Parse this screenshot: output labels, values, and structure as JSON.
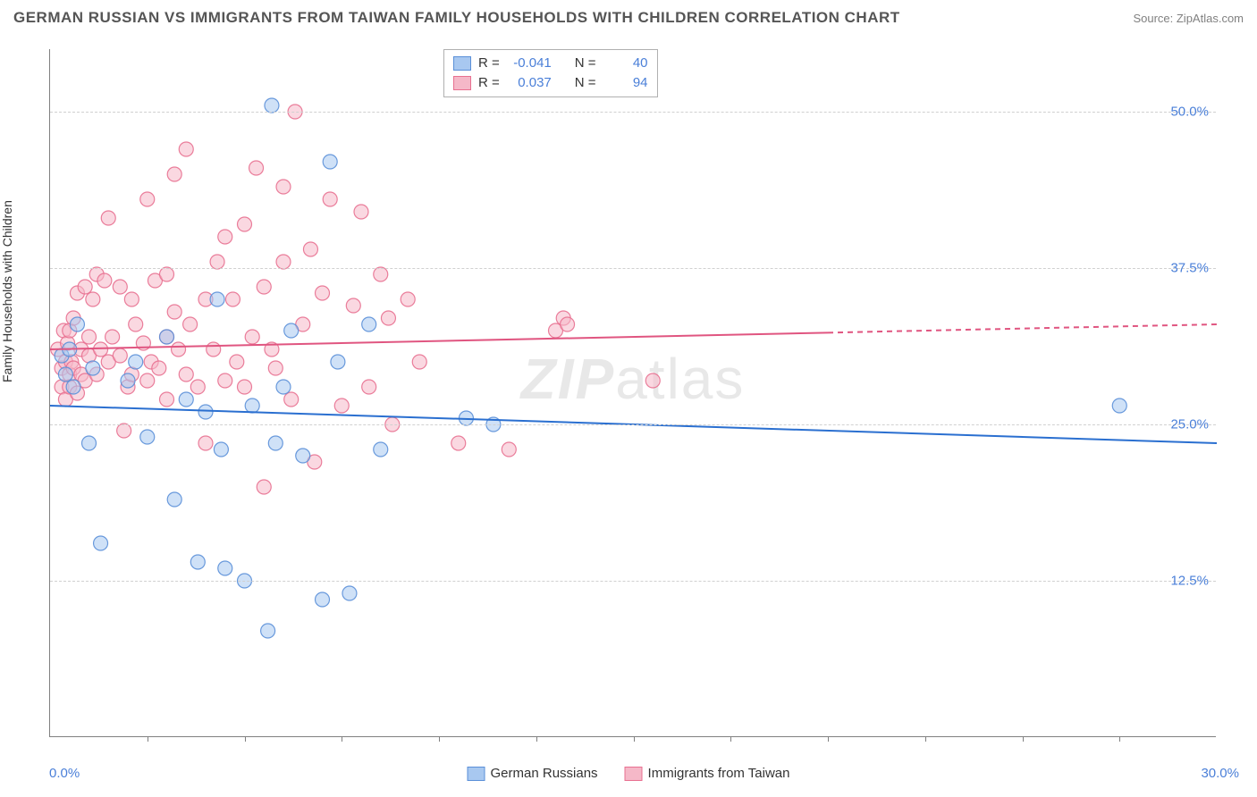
{
  "title": "GERMAN RUSSIAN VS IMMIGRANTS FROM TAIWAN FAMILY HOUSEHOLDS WITH CHILDREN CORRELATION CHART",
  "source": "Source: ZipAtlas.com",
  "ylabel": "Family Households with Children",
  "watermark": {
    "zip": "ZIP",
    "atlas": "atlas"
  },
  "chart": {
    "type": "scatter",
    "xlim": [
      0,
      30
    ],
    "ylim": [
      0,
      55
    ],
    "xtick_labels": [
      "0.0%",
      "30.0%"
    ],
    "xtick_positions": [
      0,
      30
    ],
    "xminor_ticks": [
      2.5,
      5,
      7.5,
      10,
      12.5,
      15,
      17.5,
      20,
      22.5,
      25,
      27.5
    ],
    "ytick_labels": [
      "12.5%",
      "25.0%",
      "37.5%",
      "50.0%"
    ],
    "ytick_positions": [
      12.5,
      25,
      37.5,
      50
    ],
    "grid_color": "#d0d0d0",
    "background_color": "#ffffff",
    "marker_radius": 8,
    "marker_opacity": 0.55,
    "marker_stroke_opacity": 0.9,
    "line_width": 2
  },
  "series": [
    {
      "name": "German Russians",
      "fill_color": "#a8c8f0",
      "stroke_color": "#5a8fd8",
      "line_color": "#2a6fd0",
      "R": "-0.041",
      "N": "40",
      "trend": {
        "x1": 0,
        "y1": 26.5,
        "x2": 30,
        "y2": 23.5,
        "solid_until": 30
      },
      "points": [
        [
          0.3,
          30.5
        ],
        [
          0.4,
          29
        ],
        [
          0.5,
          31
        ],
        [
          0.6,
          28
        ],
        [
          0.7,
          33
        ],
        [
          1.0,
          23.5
        ],
        [
          1.1,
          29.5
        ],
        [
          1.3,
          15.5
        ],
        [
          2.0,
          28.5
        ],
        [
          2.2,
          30
        ],
        [
          2.5,
          24
        ],
        [
          3.0,
          32
        ],
        [
          3.2,
          19
        ],
        [
          3.5,
          27
        ],
        [
          3.8,
          14
        ],
        [
          4.0,
          26
        ],
        [
          4.3,
          35
        ],
        [
          4.4,
          23
        ],
        [
          4.5,
          13.5
        ],
        [
          5.0,
          12.5
        ],
        [
          5.2,
          26.5
        ],
        [
          5.6,
          8.5
        ],
        [
          5.7,
          50.5
        ],
        [
          5.8,
          23.5
        ],
        [
          6.0,
          28
        ],
        [
          6.2,
          32.5
        ],
        [
          6.5,
          22.5
        ],
        [
          7.0,
          11
        ],
        [
          7.2,
          46
        ],
        [
          7.4,
          30
        ],
        [
          7.7,
          11.5
        ],
        [
          8.2,
          33
        ],
        [
          8.5,
          23
        ],
        [
          10.7,
          25.5
        ],
        [
          11.4,
          25
        ],
        [
          27.5,
          26.5
        ]
      ]
    },
    {
      "name": "Immigrants from Taiwan",
      "fill_color": "#f5b8c8",
      "stroke_color": "#e87090",
      "line_color": "#e05580",
      "R": "0.037",
      "N": "94",
      "trend": {
        "x1": 0,
        "y1": 31,
        "x2": 30,
        "y2": 33,
        "solid_until": 20
      },
      "points": [
        [
          0.2,
          31
        ],
        [
          0.3,
          29.5
        ],
        [
          0.3,
          28
        ],
        [
          0.35,
          32.5
        ],
        [
          0.4,
          30
        ],
        [
          0.4,
          27
        ],
        [
          0.45,
          31.5
        ],
        [
          0.5,
          32.5
        ],
        [
          0.5,
          29
        ],
        [
          0.5,
          28
        ],
        [
          0.55,
          30
        ],
        [
          0.6,
          33.5
        ],
        [
          0.6,
          29.5
        ],
        [
          0.7,
          35.5
        ],
        [
          0.7,
          27.5
        ],
        [
          0.8,
          31
        ],
        [
          0.8,
          29
        ],
        [
          0.9,
          36
        ],
        [
          0.9,
          28.5
        ],
        [
          1.0,
          30.5
        ],
        [
          1.0,
          32
        ],
        [
          1.1,
          35
        ],
        [
          1.2,
          37
        ],
        [
          1.2,
          29
        ],
        [
          1.3,
          31
        ],
        [
          1.4,
          36.5
        ],
        [
          1.5,
          30
        ],
        [
          1.5,
          41.5
        ],
        [
          1.6,
          32
        ],
        [
          1.8,
          36
        ],
        [
          1.8,
          30.5
        ],
        [
          1.9,
          24.5
        ],
        [
          2.0,
          28
        ],
        [
          2.1,
          35
        ],
        [
          2.1,
          29
        ],
        [
          2.2,
          33
        ],
        [
          2.4,
          31.5
        ],
        [
          2.5,
          43
        ],
        [
          2.5,
          28.5
        ],
        [
          2.6,
          30
        ],
        [
          2.7,
          36.5
        ],
        [
          2.8,
          29.5
        ],
        [
          3.0,
          37
        ],
        [
          3.0,
          32
        ],
        [
          3.0,
          27
        ],
        [
          3.2,
          45
        ],
        [
          3.2,
          34
        ],
        [
          3.3,
          31
        ],
        [
          3.5,
          47
        ],
        [
          3.5,
          29
        ],
        [
          3.6,
          33
        ],
        [
          3.8,
          28
        ],
        [
          4.0,
          35
        ],
        [
          4.0,
          23.5
        ],
        [
          4.2,
          31
        ],
        [
          4.3,
          38
        ],
        [
          4.5,
          28.5
        ],
        [
          4.5,
          40
        ],
        [
          4.7,
          35
        ],
        [
          4.8,
          30
        ],
        [
          5.0,
          41
        ],
        [
          5.0,
          28
        ],
        [
          5.2,
          32
        ],
        [
          5.3,
          45.5
        ],
        [
          5.5,
          36
        ],
        [
          5.5,
          20
        ],
        [
          5.7,
          31
        ],
        [
          5.8,
          29.5
        ],
        [
          6.0,
          44
        ],
        [
          6.0,
          38
        ],
        [
          6.2,
          27
        ],
        [
          6.3,
          50
        ],
        [
          6.5,
          33
        ],
        [
          6.7,
          39
        ],
        [
          6.8,
          22
        ],
        [
          7.0,
          35.5
        ],
        [
          7.2,
          43
        ],
        [
          7.5,
          26.5
        ],
        [
          7.8,
          34.5
        ],
        [
          8.0,
          42
        ],
        [
          8.2,
          28
        ],
        [
          8.5,
          37
        ],
        [
          8.7,
          33.5
        ],
        [
          8.8,
          25
        ],
        [
          9.2,
          35
        ],
        [
          9.5,
          30
        ],
        [
          10.5,
          23.5
        ],
        [
          11.8,
          23
        ],
        [
          13.0,
          32.5
        ],
        [
          13.2,
          33.5
        ],
        [
          13.3,
          33
        ],
        [
          15.5,
          28.5
        ]
      ]
    }
  ],
  "legend": {
    "series1_label": "German Russians",
    "series2_label": "Immigrants from Taiwan",
    "r_label": "R =",
    "n_label": "N ="
  }
}
